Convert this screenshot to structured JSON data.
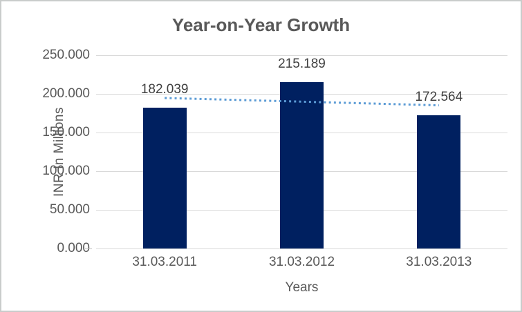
{
  "chart_data": {
    "type": "bar",
    "title": "Year-on-Year Growth",
    "categories": [
      "31.03.2011",
      "31.03.2012",
      "31.03.2013"
    ],
    "values": [
      182.039,
      215.189,
      172.564
    ],
    "data_labels": [
      "182.039",
      "215.189",
      "172.564"
    ],
    "xlabel": "Years",
    "ylabel": "INR In Millions",
    "ylim": [
      0,
      250
    ],
    "ytick_step": 50,
    "ytick_labels": [
      "0.000",
      "50.000",
      "100.000",
      "150.000",
      "200.000",
      "250.000"
    ],
    "grid": true,
    "legend": "none",
    "trendline": {
      "type": "linear",
      "style": "dotted",
      "start_value": 194.67,
      "end_value": 185.19
    },
    "colors": {
      "bar": "#002060",
      "trendline": "#5b9bd5",
      "gridline": "#d9d9d9",
      "axis_text": "#595959",
      "data_label_text": "#404040",
      "title_text": "#595959",
      "border": "#c9cccb",
      "background": "#ffffff"
    }
  }
}
